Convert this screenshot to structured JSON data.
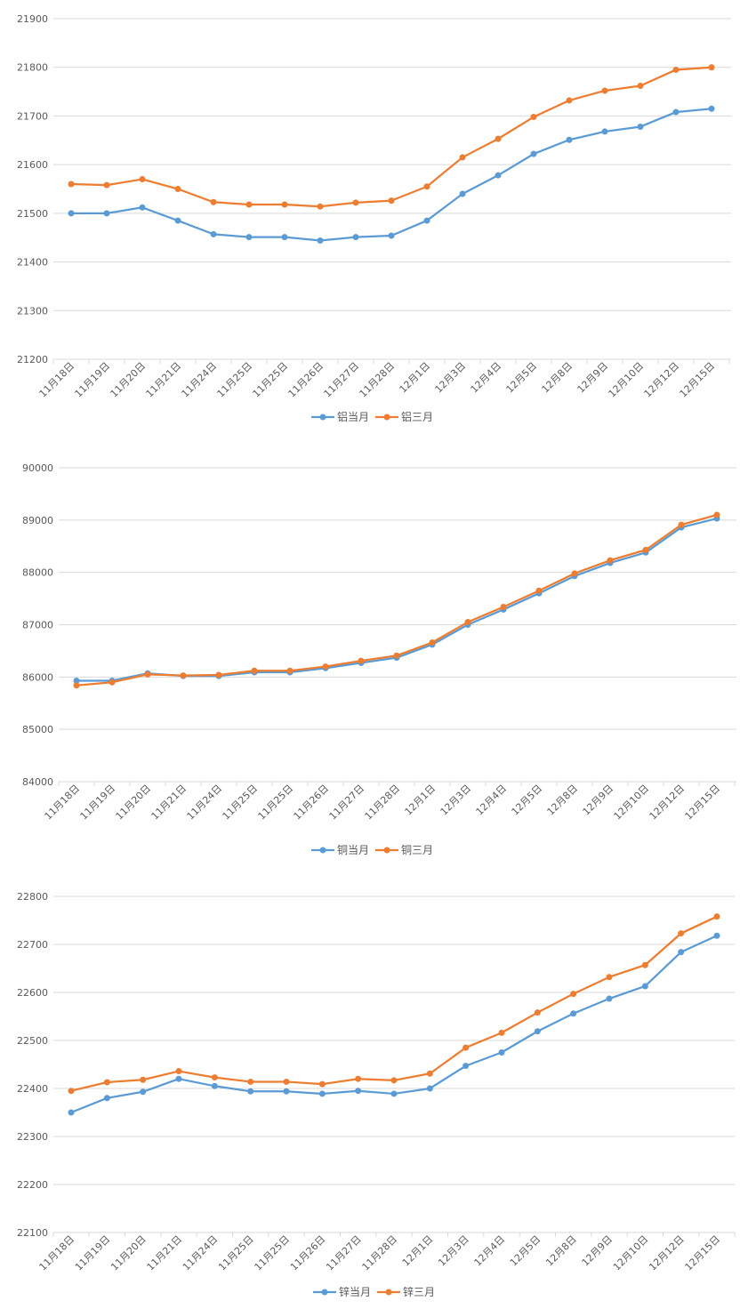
{
  "colors": {
    "series_current": "#5B9BD5",
    "series_three_month": "#ED7D31",
    "grid": "#D9D9D9",
    "text": "#595959"
  },
  "chart_data": [
    {
      "type": "line",
      "title": "",
      "xlabel": "",
      "ylabel": "",
      "ylim": [
        21200,
        21900
      ],
      "yticks": [
        21200,
        21300,
        21400,
        21500,
        21600,
        21700,
        21800,
        21900
      ],
      "grid": true,
      "legend": "bottom",
      "categories": [
        "11月18日",
        "11月19日",
        "11月20日",
        "11月21日",
        "11月24日",
        "11月25日",
        "11月25日",
        "11月26日",
        "11月27日",
        "11月28日",
        "12月1日",
        "12月3日",
        "12月4日",
        "12月5日",
        "12月8日",
        "12月9日",
        "12月10日",
        "12月12日",
        "12月15日"
      ],
      "series": [
        {
          "name": "铝当月",
          "values": [
            21500,
            21500,
            21512,
            21485,
            21457,
            21451,
            21451,
            21444,
            21451,
            21454,
            21485,
            21540,
            21578,
            21622,
            21651,
            21668,
            21678,
            21708,
            21715
          ]
        },
        {
          "name": "铝三月",
          "values": [
            21560,
            21558,
            21570,
            21550,
            21523,
            21518,
            21518,
            21514,
            21522,
            21526,
            21555,
            21615,
            21653,
            21698,
            21732,
            21752,
            21762,
            21795,
            21800
          ]
        }
      ]
    },
    {
      "type": "line",
      "title": "",
      "xlabel": "",
      "ylabel": "",
      "ylim": [
        84000,
        90000
      ],
      "yticks": [
        84000,
        85000,
        86000,
        87000,
        88000,
        89000,
        90000
      ],
      "grid": true,
      "legend": "bottom",
      "categories": [
        "11月18日",
        "11月19日",
        "11月20日",
        "11月21日",
        "11月24日",
        "11月25日",
        "11月25日",
        "11月26日",
        "11月27日",
        "11月28日",
        "12月1日",
        "12月3日",
        "12月4日",
        "12月5日",
        "12月8日",
        "12月9日",
        "12月10日",
        "12月12日",
        "12月15日"
      ],
      "series": [
        {
          "name": "铜当月",
          "values": [
            85930,
            85930,
            86070,
            86020,
            86020,
            86090,
            86090,
            86170,
            86270,
            86370,
            86620,
            87000,
            87290,
            87600,
            87930,
            88180,
            88380,
            88860,
            89030
          ]
        },
        {
          "name": "铜三月",
          "values": [
            85840,
            85900,
            86050,
            86030,
            86040,
            86120,
            86120,
            86200,
            86310,
            86410,
            86660,
            87050,
            87340,
            87650,
            87980,
            88230,
            88430,
            88910,
            89100
          ]
        }
      ]
    },
    {
      "type": "line",
      "title": "",
      "xlabel": "",
      "ylabel": "",
      "ylim": [
        22100,
        22800
      ],
      "yticks": [
        22100,
        22200,
        22300,
        22400,
        22500,
        22600,
        22700,
        22800
      ],
      "grid": true,
      "legend": "bottom",
      "categories": [
        "11月18日",
        "11月19日",
        "11月20日",
        "11月21日",
        "11月24日",
        "11月25日",
        "11月25日",
        "11月26日",
        "11月27日",
        "11月28日",
        "12月1日",
        "12月3日",
        "12月4日",
        "12月5日",
        "12月8日",
        "12月9日",
        "12月10日",
        "12月12日",
        "12月15日"
      ],
      "series": [
        {
          "name": "锌当月",
          "values": [
            22350,
            22380,
            22393,
            22420,
            22405,
            22394,
            22394,
            22389,
            22395,
            22389,
            22400,
            22447,
            22475,
            22519,
            22556,
            22587,
            22613,
            22684,
            22718
          ]
        },
        {
          "name": "锌三月",
          "values": [
            22395,
            22413,
            22418,
            22436,
            22423,
            22414,
            22414,
            22409,
            22420,
            22417,
            22431,
            22485,
            22516,
            22558,
            22597,
            22632,
            22657,
            22723,
            22758
          ]
        }
      ]
    }
  ]
}
